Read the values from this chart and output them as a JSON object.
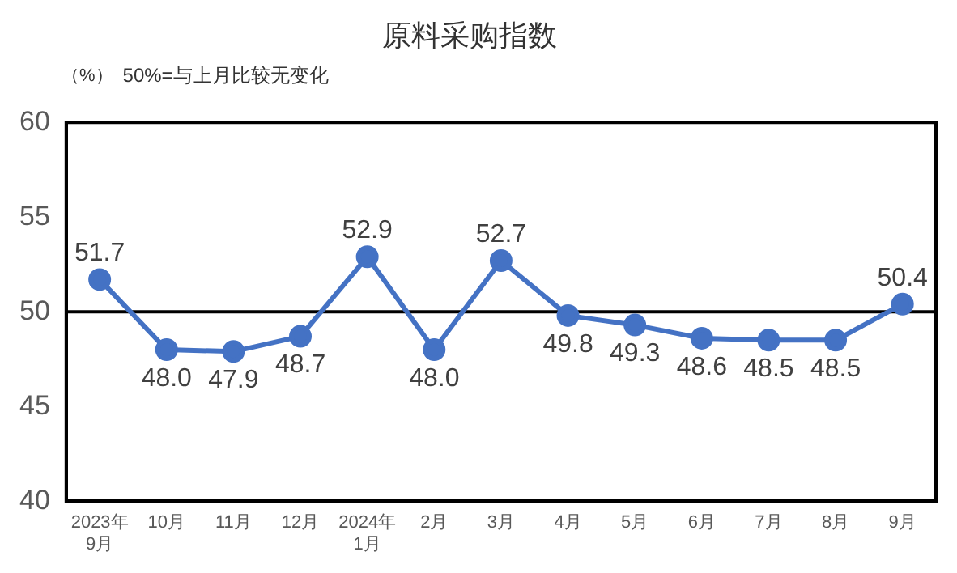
{
  "chart_data": {
    "type": "line",
    "title": "原料采购指数",
    "ylabel": "（%）",
    "annotations": [
      "50%=与上月比较无变化"
    ],
    "categories": [
      "2023年\n9月",
      "10月",
      "11月",
      "12月",
      "2024年\n1月",
      "2月",
      "3月",
      "4月",
      "5月",
      "6月",
      "7月",
      "8月",
      "9月"
    ],
    "series": [
      {
        "color": "#4472c4",
        "values": [
          51.7,
          48.0,
          47.9,
          48.7,
          52.9,
          48.0,
          52.7,
          49.8,
          49.3,
          48.6,
          48.5,
          48.5,
          50.4
        ],
        "value_labels": [
          "51.7",
          "48.0",
          "47.9",
          "48.7",
          "52.9",
          "48.0",
          "52.7",
          "49.8",
          "49.3",
          "48.6",
          "48.5",
          "48.5",
          "50.4"
        ]
      }
    ],
    "ylim": [
      40,
      60
    ],
    "yticks": [
      40,
      45,
      50,
      55,
      60
    ],
    "grid": false,
    "legend": false,
    "marker": "circle",
    "line_style": "solid",
    "ref_lines": [
      {
        "axis": "y",
        "value": 50,
        "color": "#000000"
      }
    ]
  }
}
